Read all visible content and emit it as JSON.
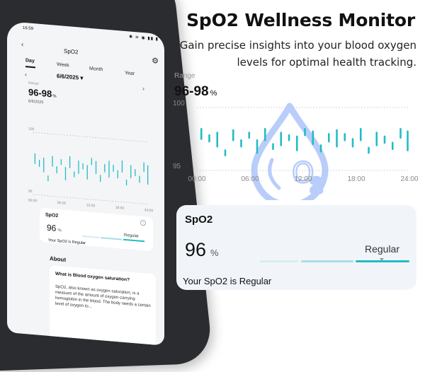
{
  "promo": {
    "headline": "SpO2 Wellness Monitor",
    "sub_line1": "Gain precise insights into your blood oxygen",
    "sub_line2": "levels for optimal health tracking."
  },
  "main_chart": {
    "range_label": "Range",
    "range_value": "96-98",
    "range_unit": "%"
  },
  "card": {
    "title": "SpO2",
    "value": "96",
    "unit": "%",
    "status": "Regular",
    "message": "Your SpO2 is Regular"
  },
  "phone": {
    "status_time": "16:59",
    "status_icons": "✱ ≋ ◉ ▮▮ ▮",
    "screen_title": "SpO2",
    "tabs": [
      "Day",
      "Week",
      "Month",
      "Year"
    ],
    "active_tab": "Day",
    "date": "6/6/2025",
    "range_label": "Range",
    "range_value": "96-98",
    "range_unit": "%",
    "range_date": "6/6/2025",
    "card_title": "SpO2",
    "card_value": "96",
    "card_unit": "%",
    "card_status": "Regular",
    "card_message": "Your SpO2 is Regular",
    "about_heading": "About",
    "about_question": "What is Blood oxygen saturation?",
    "about_body": "SpO2, also known as oxygen saturation, is a measure of the amount of oxygen-carrying hemoglobin in the blood. The body needs a certain level of oxygen to..."
  },
  "colors": {
    "accent": "#22bcc4",
    "drop_icon": "#b9cdfb",
    "card_bg": "#f1f5fa"
  },
  "icons": {
    "drop": "oxygen-drop-icon",
    "gear": "gear-icon",
    "back": "back-arrow-icon",
    "info": "info-icon"
  },
  "chart_data": {
    "type": "scatter",
    "marker": "vertical-range-bar",
    "ylim": [
      95,
      100
    ],
    "y_ticks": [
      100,
      95
    ],
    "x_ticks": [
      "00:00",
      "06:00",
      "12:00",
      "18:00",
      "24:00"
    ],
    "xlim_hours": [
      0,
      24
    ],
    "ranges": [
      {
        "x": 0.5,
        "low": 97.5,
        "high": 98.3
      },
      {
        "x": 1.4,
        "low": 97.3,
        "high": 97.8
      },
      {
        "x": 2.3,
        "low": 96.9,
        "high": 98.0
      },
      {
        "x": 3.2,
        "low": 96.2,
        "high": 96.6
      },
      {
        "x": 4.1,
        "low": 97.4,
        "high": 98.2
      },
      {
        "x": 5.0,
        "low": 96.9,
        "high": 97.4
      },
      {
        "x": 5.9,
        "low": 97.6,
        "high": 98.0
      },
      {
        "x": 6.8,
        "low": 96.4,
        "high": 97.4
      },
      {
        "x": 7.7,
        "low": 97.4,
        "high": 98.3
      },
      {
        "x": 8.6,
        "low": 96.7,
        "high": 97.1
      },
      {
        "x": 9.5,
        "low": 97.0,
        "high": 98.0
      },
      {
        "x": 10.4,
        "low": 97.4,
        "high": 97.8
      },
      {
        "x": 11.3,
        "low": 96.6,
        "high": 97.7
      },
      {
        "x": 12.2,
        "low": 97.8,
        "high": 98.3
      },
      {
        "x": 13.1,
        "low": 97.1,
        "high": 98.1
      },
      {
        "x": 14.0,
        "low": 96.5,
        "high": 97.0
      },
      {
        "x": 14.9,
        "low": 97.3,
        "high": 97.9
      },
      {
        "x": 15.8,
        "low": 96.9,
        "high": 98.2
      },
      {
        "x": 16.7,
        "low": 97.4,
        "high": 97.9
      },
      {
        "x": 17.6,
        "low": 96.9,
        "high": 97.5
      },
      {
        "x": 18.5,
        "low": 97.4,
        "high": 98.3
      },
      {
        "x": 19.4,
        "low": 96.4,
        "high": 96.8
      },
      {
        "x": 20.3,
        "low": 97.0,
        "high": 98.0
      },
      {
        "x": 21.2,
        "low": 97.2,
        "high": 97.7
      },
      {
        "x": 22.1,
        "low": 96.7,
        "high": 97.2
      },
      {
        "x": 23.0,
        "low": 97.6,
        "high": 98.3
      },
      {
        "x": 23.8,
        "low": 96.6,
        "high": 98.1
      }
    ]
  }
}
